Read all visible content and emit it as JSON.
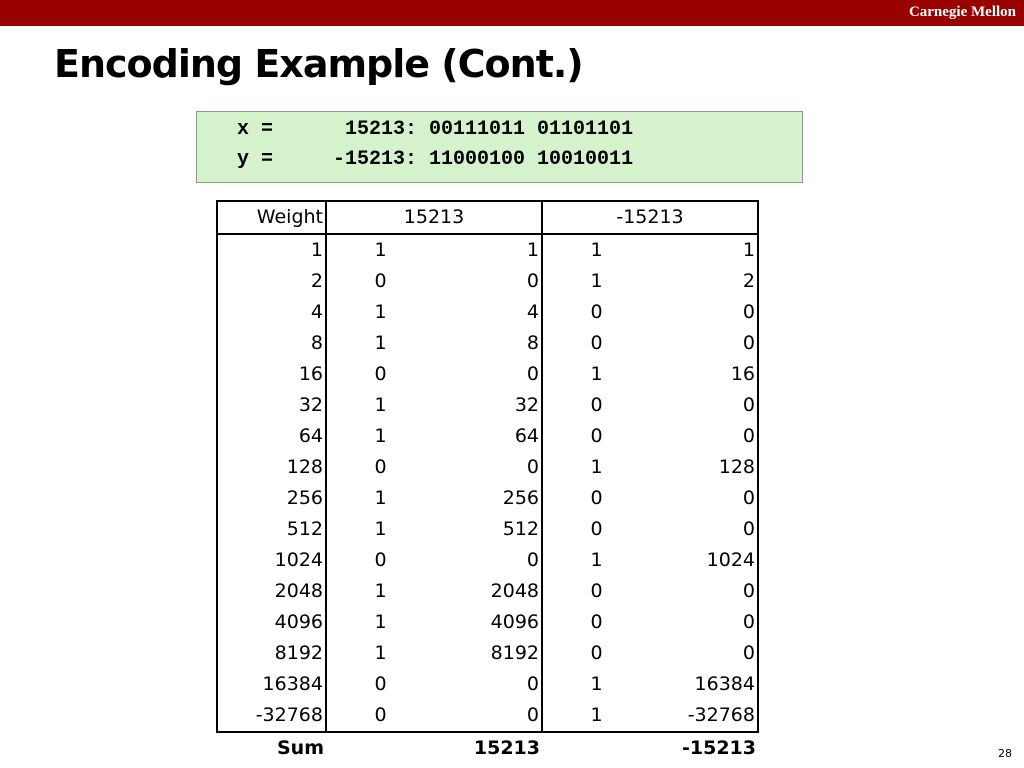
{
  "header": {
    "brand": "Carnegie Mellon"
  },
  "title": "Encoding Example (Cont.)",
  "code": [
    "x =      15213: 00111011 01101101",
    "y =     -15213: 11000100 10010011"
  ],
  "table": {
    "headers": [
      "Weight",
      "15213",
      "-15213"
    ],
    "rows": [
      [
        1,
        1,
        1,
        1,
        1
      ],
      [
        2,
        0,
        0,
        1,
        2
      ],
      [
        4,
        1,
        4,
        0,
        0
      ],
      [
        8,
        1,
        8,
        0,
        0
      ],
      [
        16,
        0,
        0,
        1,
        16
      ],
      [
        32,
        1,
        32,
        0,
        0
      ],
      [
        64,
        1,
        64,
        0,
        0
      ],
      [
        128,
        0,
        0,
        1,
        128
      ],
      [
        256,
        1,
        256,
        0,
        0
      ],
      [
        512,
        1,
        512,
        0,
        0
      ],
      [
        1024,
        0,
        0,
        1,
        1024
      ],
      [
        2048,
        1,
        2048,
        0,
        0
      ],
      [
        4096,
        1,
        4096,
        0,
        0
      ],
      [
        8192,
        1,
        8192,
        0,
        0
      ],
      [
        16384,
        0,
        0,
        1,
        16384
      ],
      [
        -32768,
        0,
        0,
        1,
        -32768
      ]
    ],
    "sum": {
      "label": "Sum",
      "values": [
        15213,
        -15213
      ]
    }
  },
  "page_number": 28
}
